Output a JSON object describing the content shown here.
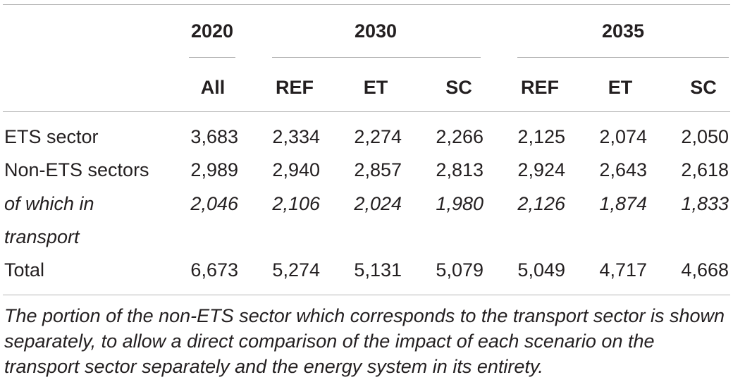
{
  "table": {
    "years": [
      {
        "label": "2020"
      },
      {
        "label": "2030"
      },
      {
        "label": "2035"
      }
    ],
    "scenarios": [
      "All",
      "REF",
      "ET",
      "SC",
      "REF",
      "ET",
      "SC"
    ],
    "rows": [
      {
        "label": "ETS sector",
        "values": [
          "3,683",
          "2,334",
          "2,274",
          "2,266",
          "2,125",
          "2,074",
          "2,050"
        ],
        "italic": false
      },
      {
        "label": "Non-ETS sectors",
        "values": [
          "2,989",
          "2,940",
          "2,857",
          "2,813",
          "2,924",
          "2,643",
          "2,618"
        ],
        "italic": false
      },
      {
        "label": "of which in",
        "label_line2": "transport",
        "values": [
          "2,046",
          "2,106",
          "2,024",
          "1,980",
          "2,126",
          "1,874",
          "1,833"
        ],
        "italic": true
      },
      {
        "label": "Total",
        "values": [
          "6,673",
          "5,274",
          "5,131",
          "5,079",
          "5,049",
          "4,717",
          "4,668"
        ],
        "italic": false
      }
    ]
  },
  "footnote": "The portion of the non-ETS sector which corresponds to the transport sector is shown separately, to allow a direct comparison of the impact of each scenario on the transport sector separately and the energy system in its entirety."
}
